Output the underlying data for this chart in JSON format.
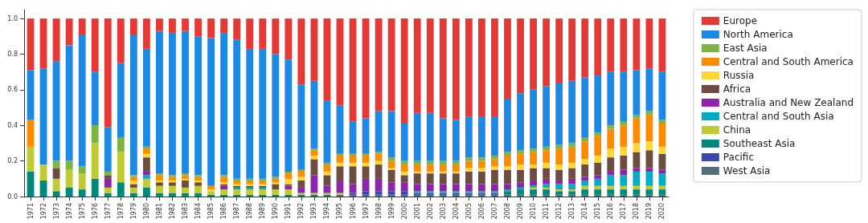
{
  "chart_data": {
    "type": "bar",
    "stacked": true,
    "legend": "right",
    "grid": false,
    "categories": [
      "1971",
      "1972",
      "1973",
      "1974",
      "1975",
      "1976",
      "1977",
      "1978",
      "1979",
      "1980",
      "1981",
      "1982",
      "1983",
      "1984",
      "1985",
      "1986",
      "1987",
      "1988",
      "1989",
      "1990",
      "1991",
      "1992",
      "1993",
      "1994",
      "1995",
      "1996",
      "1997",
      "1998",
      "1999",
      "2000",
      "2001",
      "2002",
      "2003",
      "2004",
      "2005",
      "2006",
      "2007",
      "2008",
      "2009",
      "2010",
      "2011",
      "2012",
      "2013",
      "2014",
      "2015",
      "2016",
      "2017",
      "2018",
      "2019",
      "2020"
    ],
    "ylim": [
      0,
      1.05
    ],
    "yticks": [
      {
        "value": 0,
        "label": "0.0"
      },
      {
        "value": 0.2,
        "label": "0.2"
      },
      {
        "value": 0.4,
        "label": "0.4"
      },
      {
        "value": 0.6,
        "label": "0.6"
      },
      {
        "value": 0.8,
        "label": "0.8"
      },
      {
        "value": 1,
        "label": "1.0"
      }
    ],
    "series": [
      {
        "name": "West Asia",
        "color": "#546e7a",
        "values": [
          0,
          0,
          0,
          0,
          0,
          0,
          0,
          0,
          0,
          0,
          0,
          0,
          0,
          0,
          0,
          0,
          0,
          0,
          0,
          0,
          0,
          0,
          0,
          0,
          0.01,
          0.01,
          0.01,
          0.01,
          0.01,
          0.01,
          0.01,
          0.01,
          0.01,
          0.01,
          0.01,
          0.01,
          0.01,
          0.01,
          0.01,
          0.01,
          0.01,
          0.01,
          0.01,
          0.01,
          0.01,
          0.01,
          0.01,
          0.01,
          0.01,
          0.01
        ]
      },
      {
        "name": "Pacific",
        "color": "#3949ab",
        "values": [
          0,
          0,
          0,
          0,
          0,
          0,
          0,
          0,
          0,
          0,
          0,
          0,
          0,
          0,
          0,
          0,
          0,
          0,
          0,
          0,
          0,
          0,
          0,
          0,
          0,
          0.01,
          0.02,
          0.02,
          0.02,
          0.02,
          0.01,
          0.01,
          0.01,
          0.01,
          0.01,
          0.01,
          0.01,
          0,
          0,
          0,
          0,
          0,
          0,
          0,
          0,
          0,
          0,
          0,
          0,
          0
        ]
      },
      {
        "name": "Southeast Asia",
        "color": "#00897b",
        "values": [
          0.14,
          0.09,
          0.03,
          0.05,
          0.04,
          0.1,
          0.02,
          0.08,
          0.02,
          0.05,
          0.02,
          0.02,
          0.02,
          0.02,
          0.01,
          0.01,
          0.01,
          0.01,
          0.01,
          0.01,
          0.01,
          0.01,
          0.01,
          0.01,
          0,
          0,
          0,
          0,
          0,
          0,
          0,
          0,
          0,
          0,
          0,
          0,
          0,
          0.02,
          0.03,
          0.03,
          0.03,
          0.02,
          0.02,
          0.03,
          0.03,
          0.03,
          0.03,
          0.03,
          0.03,
          0.03
        ]
      },
      {
        "name": "China",
        "color": "#c0ca33",
        "values": [
          0.14,
          0.09,
          0.07,
          0.1,
          0.09,
          0.2,
          0.03,
          0.17,
          0.03,
          0.05,
          0.04,
          0.04,
          0.03,
          0.04,
          0.02,
          0.03,
          0.03,
          0.03,
          0.03,
          0.03,
          0.03,
          0.01,
          0.01,
          0.01,
          0.01,
          0,
          0,
          0,
          0,
          0,
          0,
          0,
          0,
          0,
          0,
          0,
          0,
          0,
          0,
          0.01,
          0.01,
          0.01,
          0.01,
          0.02,
          0.02,
          0.02,
          0.02,
          0.02,
          0.02,
          0.02
        ]
      },
      {
        "name": "Central and South Asia",
        "color": "#00acc1",
        "values": [
          0,
          0,
          0,
          0,
          0,
          0,
          0,
          0,
          0,
          0.02,
          0,
          0,
          0,
          0,
          0,
          0,
          0.01,
          0.01,
          0.01,
          0,
          0,
          0,
          0,
          0,
          0,
          0,
          0,
          0,
          0,
          0,
          0.01,
          0.01,
          0.01,
          0.01,
          0.01,
          0.01,
          0.01,
          0.01,
          0.01,
          0.01,
          0.02,
          0.03,
          0.03,
          0.03,
          0.04,
          0.06,
          0.06,
          0.08,
          0.08,
          0.07
        ]
      },
      {
        "name": "Australia and New Zealand",
        "color": "#8e24aa",
        "values": [
          0,
          0,
          0,
          0,
          0,
          0,
          0.05,
          0,
          0,
          0.02,
          0,
          0,
          0,
          0,
          0,
          0.02,
          0,
          0,
          0,
          0,
          0.02,
          0.03,
          0.1,
          0.04,
          0.07,
          0.05,
          0.07,
          0.07,
          0.05,
          0.05,
          0.04,
          0.04,
          0.04,
          0.04,
          0.04,
          0.04,
          0.04,
          0.03,
          0.03,
          0.03,
          0.03,
          0.02,
          0.03,
          0.02,
          0.02,
          0.02,
          0.03,
          0.02,
          0.02,
          0.02
        ]
      },
      {
        "name": "Africa",
        "color": "#6d4c41",
        "values": [
          0,
          0,
          0.06,
          0,
          0,
          0,
          0.02,
          0,
          0.02,
          0.08,
          0.02,
          0.02,
          0.04,
          0.02,
          0,
          0.01,
          0.01,
          0.01,
          0.01,
          0.03,
          0.01,
          0.04,
          0.09,
          0.06,
          0.08,
          0.1,
          0.07,
          0.08,
          0.07,
          0.04,
          0.06,
          0.06,
          0.06,
          0.06,
          0.07,
          0.07,
          0.08,
          0.08,
          0.07,
          0.07,
          0.06,
          0.06,
          0.06,
          0.07,
          0.07,
          0.08,
          0.08,
          0.09,
          0.1,
          0.09
        ]
      },
      {
        "name": "Russia",
        "color": "#fdd835",
        "values": [
          0,
          0,
          0,
          0,
          0,
          0,
          0,
          0,
          0.02,
          0.02,
          0.01,
          0.01,
          0.01,
          0.01,
          0.01,
          0.01,
          0.01,
          0.01,
          0.01,
          0.01,
          0.03,
          0.02,
          0.02,
          0.02,
          0.02,
          0.02,
          0.02,
          0.02,
          0.01,
          0.02,
          0.01,
          0.01,
          0.01,
          0.01,
          0.02,
          0.02,
          0.02,
          0.02,
          0.03,
          0.02,
          0.03,
          0.03,
          0.03,
          0.03,
          0.04,
          0.05,
          0.05,
          0.05,
          0.05,
          0.04
        ]
      },
      {
        "name": "Central and South America",
        "color": "#fb8c00",
        "values": [
          0.15,
          0,
          0,
          0,
          0,
          0,
          0,
          0,
          0.02,
          0.03,
          0.03,
          0.02,
          0.02,
          0.02,
          0.02,
          0.03,
          0.02,
          0.02,
          0.02,
          0.02,
          0.03,
          0.03,
          0.03,
          0.04,
          0.04,
          0.04,
          0.04,
          0.04,
          0.04,
          0.04,
          0.04,
          0.04,
          0.04,
          0.04,
          0.04,
          0.04,
          0.04,
          0.06,
          0.06,
          0.07,
          0.07,
          0.09,
          0.09,
          0.1,
          0.11,
          0.11,
          0.12,
          0.14,
          0.15,
          0.13
        ]
      },
      {
        "name": "East Asia",
        "color": "#7cb342",
        "values": [
          0,
          0,
          0.04,
          0.05,
          0.04,
          0.1,
          0.02,
          0.08,
          0.01,
          0.01,
          0.01,
          0.01,
          0.01,
          0.01,
          0,
          0.01,
          0.01,
          0.01,
          0.01,
          0.01,
          0.01,
          0.01,
          0.01,
          0.01,
          0.01,
          0.01,
          0.01,
          0.01,
          0.02,
          0.02,
          0.02,
          0.02,
          0.02,
          0.02,
          0.02,
          0.02,
          0.02,
          0.02,
          0.02,
          0.02,
          0.02,
          0.02,
          0.02,
          0.02,
          0.02,
          0.02,
          0.02,
          0.02,
          0.02,
          0.02
        ]
      },
      {
        "name": "North America",
        "color": "#1e88e5",
        "values": [
          0.28,
          0.54,
          0.56,
          0.65,
          0.74,
          0.3,
          0.25,
          0.42,
          0.79,
          0.55,
          0.8,
          0.8,
          0.8,
          0.78,
          0.83,
          0.8,
          0.78,
          0.73,
          0.73,
          0.69,
          0.63,
          0.48,
          0.38,
          0.35,
          0.27,
          0.18,
          0.2,
          0.23,
          0.26,
          0.21,
          0.27,
          0.27,
          0.24,
          0.23,
          0.23,
          0.23,
          0.22,
          0.3,
          0.32,
          0.33,
          0.34,
          0.35,
          0.35,
          0.34,
          0.32,
          0.3,
          0.28,
          0.25,
          0.24,
          0.27
        ]
      },
      {
        "name": "Europe",
        "color": "#e53935",
        "values": [
          0.29,
          0.28,
          0.24,
          0.15,
          0.09,
          0.3,
          0.61,
          0.25,
          0.09,
          0.17,
          0.07,
          0.08,
          0.07,
          0.1,
          0.11,
          0.08,
          0.12,
          0.17,
          0.17,
          0.2,
          0.23,
          0.37,
          0.35,
          0.46,
          0.49,
          0.58,
          0.56,
          0.52,
          0.52,
          0.59,
          0.53,
          0.53,
          0.56,
          0.57,
          0.55,
          0.55,
          0.55,
          0.45,
          0.42,
          0.4,
          0.38,
          0.36,
          0.35,
          0.33,
          0.32,
          0.3,
          0.3,
          0.29,
          0.28,
          0.3
        ]
      }
    ]
  }
}
